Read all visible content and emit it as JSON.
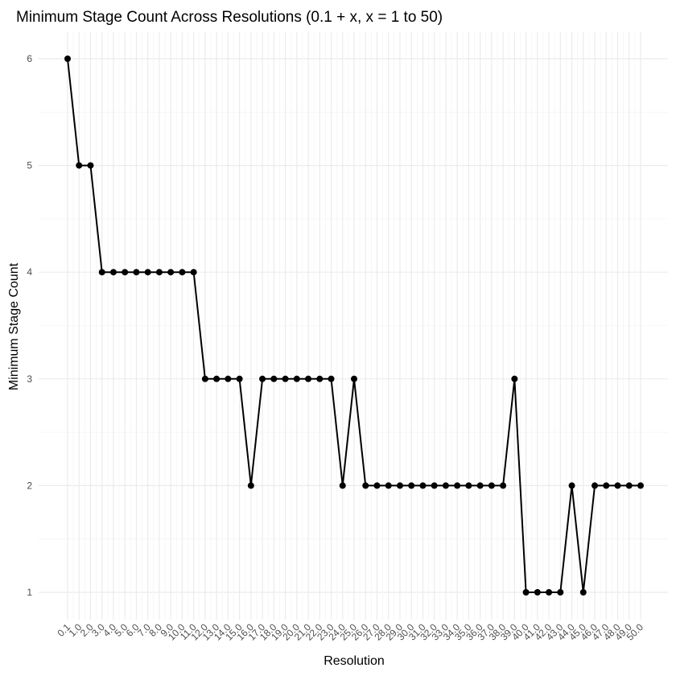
{
  "chart_data": {
    "type": "line",
    "title": "Minimum Stage Count Across Resolutions (0.1 + x, x = 1 to 50)",
    "xlabel": "Resolution",
    "ylabel": "Minimum Stage Count",
    "categories": [
      "0.1",
      "1.0",
      "2.0",
      "3.0",
      "4.0",
      "5.0",
      "6.0",
      "7.0",
      "8.0",
      "9.0",
      "10.0",
      "11.0",
      "12.0",
      "13.0",
      "14.0",
      "15.0",
      "16.0",
      "17.0",
      "18.0",
      "19.0",
      "20.0",
      "21.0",
      "22.0",
      "23.0",
      "24.0",
      "25.0",
      "26.0",
      "27.0",
      "28.0",
      "29.0",
      "30.0",
      "31.0",
      "32.0",
      "33.0",
      "34.0",
      "35.0",
      "36.0",
      "37.0",
      "38.0",
      "39.0",
      "40.0",
      "41.0",
      "42.0",
      "43.0",
      "44.0",
      "45.0",
      "46.0",
      "47.0",
      "48.0",
      "49.0",
      "50.0"
    ],
    "values": [
      6,
      5,
      5,
      4,
      4,
      4,
      4,
      4,
      4,
      4,
      4,
      4,
      3,
      3,
      3,
      3,
      2,
      3,
      3,
      3,
      3,
      3,
      3,
      3,
      2,
      3,
      2,
      2,
      2,
      2,
      2,
      2,
      2,
      2,
      2,
      2,
      2,
      2,
      2,
      3,
      1,
      1,
      1,
      1,
      2,
      1,
      2,
      2,
      2,
      2,
      2
    ],
    "y_ticks": [
      1,
      2,
      3,
      4,
      5,
      6
    ],
    "ylim": [
      0.75,
      6.25
    ],
    "grid": true,
    "legend": "none",
    "colors": {
      "line": "#000000",
      "point": "#000000",
      "grid_major": "#ebebeb",
      "grid_minor": "#f4f4f4",
      "text": "#4d4d4d",
      "title": "#000000"
    }
  }
}
